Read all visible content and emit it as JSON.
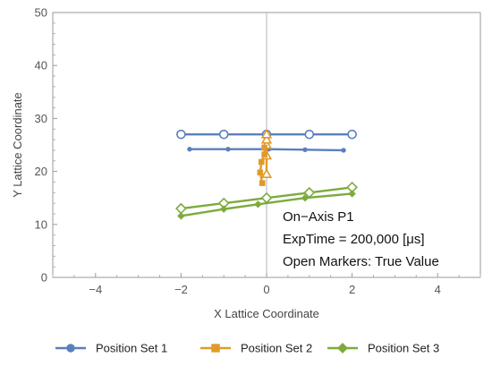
{
  "chart_data": {
    "type": "line",
    "xlabel": "X Lattice Coordinate",
    "ylabel": "Y Lattice Coordinate",
    "xlim": [
      -5,
      5
    ],
    "ylim": [
      0,
      50
    ],
    "x_ticks": [
      -4,
      -2,
      0,
      2,
      4
    ],
    "y_ticks": [
      0,
      10,
      20,
      30,
      40,
      50
    ],
    "x_tick_labels": [
      "−4",
      "−2",
      "0",
      "2",
      "4"
    ],
    "y_tick_labels": [
      "0",
      "10",
      "20",
      "30",
      "40",
      "50"
    ],
    "grid": false,
    "legend_position": "bottom",
    "annotations": [
      "On−Axis P1",
      "ExpTime = 200,000 [μs]",
      "Open Markers: True Value"
    ],
    "series": [
      {
        "name": "Position Set 1",
        "color": "#5b7fbe",
        "marker": "circle",
        "measured": [
          {
            "x": -1.8,
            "y": 24.2
          },
          {
            "x": -0.9,
            "y": 24.2
          },
          {
            "x": 0.05,
            "y": 24.2
          },
          {
            "x": 0.9,
            "y": 24.1
          },
          {
            "x": 1.8,
            "y": 24.0
          }
        ],
        "true": [
          {
            "x": -2,
            "y": 27
          },
          {
            "x": -1,
            "y": 27
          },
          {
            "x": 0,
            "y": 27
          },
          {
            "x": 1,
            "y": 27
          },
          {
            "x": 2,
            "y": 27
          }
        ]
      },
      {
        "name": "Position Set 2",
        "color": "#e09a2a",
        "marker": "square",
        "measured": [
          {
            "x": -0.1,
            "y": 17.8
          },
          {
            "x": -0.15,
            "y": 19.8
          },
          {
            "x": -0.12,
            "y": 21.8
          },
          {
            "x": -0.05,
            "y": 23.2
          },
          {
            "x": -0.05,
            "y": 24.5
          }
        ],
        "true": [
          {
            "x": 0,
            "y": 19.5
          },
          {
            "x": 0,
            "y": 23
          },
          {
            "x": 0,
            "y": 25
          },
          {
            "x": 0,
            "y": 26
          },
          {
            "x": 0,
            "y": 27
          }
        ]
      },
      {
        "name": "Position Set 3",
        "color": "#7cab3c",
        "marker": "diamond",
        "measured": [
          {
            "x": -2,
            "y": 11.6
          },
          {
            "x": -1,
            "y": 12.9
          },
          {
            "x": -0.2,
            "y": 13.8
          },
          {
            "x": 0.9,
            "y": 15.0
          },
          {
            "x": 2,
            "y": 15.8
          }
        ],
        "true": [
          {
            "x": -2,
            "y": 13
          },
          {
            "x": -1,
            "y": 14
          },
          {
            "x": 0,
            "y": 15
          },
          {
            "x": 1,
            "y": 16
          },
          {
            "x": 2,
            "y": 17
          }
        ]
      }
    ]
  }
}
